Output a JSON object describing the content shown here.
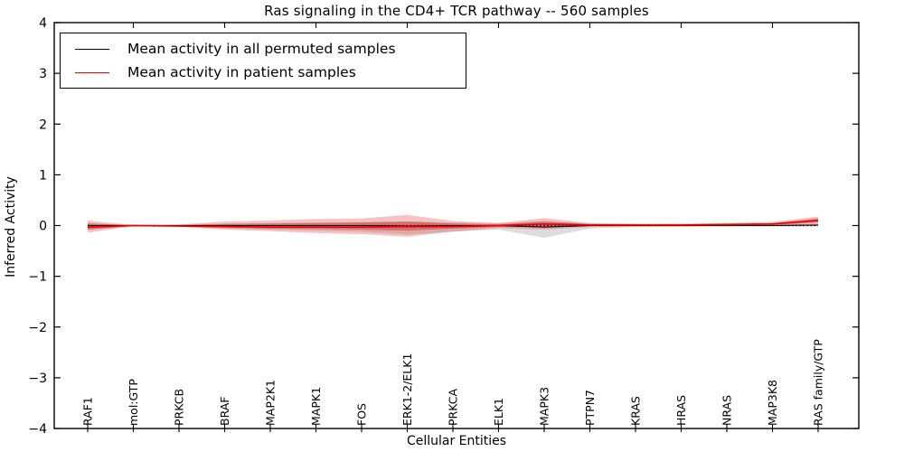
{
  "figure": {
    "title": "Ras signaling in the CD4+ TCR pathway -- 560 samples",
    "xlabel": "Cellular Entities",
    "ylabel": "Inferred Activity"
  },
  "legend": {
    "items": [
      {
        "label": "Mean activity in all permuted samples",
        "color": "#000000"
      },
      {
        "label": "Mean activity in patient samples",
        "color": "#ee0000"
      }
    ]
  },
  "chart_data": {
    "type": "line",
    "title": "Ras signaling in the CD4+ TCR pathway -- 560 samples",
    "xlabel": "Cellular Entities",
    "ylabel": "Inferred Activity",
    "ylim": [
      -4,
      4
    ],
    "yticks": [
      4,
      3,
      2,
      1,
      0,
      -1,
      -2,
      -3,
      -4
    ],
    "grid": false,
    "legend_position": "upper left",
    "categories": [
      "RAF1",
      "mol:GTP",
      "PRKCB",
      "BRAF",
      "MAP2K1",
      "MAPK1",
      "FOS",
      "ERK1-2/ELK1",
      "PRKCA",
      "ELK1",
      "MAPK3",
      "PTPN7",
      "KRAS",
      "HRAS",
      "NRAS",
      "MAP3K8",
      "RAS family/GTP"
    ],
    "top_tick_category_indices": [
      1,
      3,
      5,
      7,
      9,
      11,
      13,
      15
    ],
    "zero_line": {
      "y": 0,
      "style": "dotted",
      "color": "#000000"
    },
    "series": [
      {
        "name": "Mean activity in all permuted samples",
        "color": "#000000",
        "values": [
          0,
          0,
          0,
          0,
          0,
          0,
          0,
          -0.01,
          0,
          0,
          -0.03,
          0,
          0,
          0,
          0,
          0,
          0.01
        ]
      },
      {
        "name": "Mean activity in patient samples",
        "color": "#ee0000",
        "values": [
          -0.03,
          0,
          -0.01,
          -0.02,
          -0.03,
          -0.03,
          -0.03,
          -0.02,
          -0.02,
          0,
          0.03,
          0.01,
          0.01,
          0.01,
          0.02,
          0.03,
          0.1
        ]
      }
    ],
    "bands": [
      {
        "name": "permuted-std-band",
        "fill": "rgba(120,120,120,0.25)",
        "upper": [
          0.05,
          0.01,
          0.02,
          0.04,
          0.05,
          0.06,
          0.07,
          0.08,
          0.06,
          0.05,
          0.09,
          0.04,
          0.03,
          0.02,
          0.02,
          0.02,
          0.04
        ],
        "lower": [
          -0.08,
          -0.01,
          -0.02,
          -0.06,
          -0.08,
          -0.1,
          -0.12,
          -0.18,
          -0.12,
          -0.08,
          -0.24,
          -0.06,
          -0.03,
          -0.02,
          -0.02,
          -0.02,
          -0.02
        ]
      },
      {
        "name": "patient-std-band-outer",
        "fill": "rgba(220,38,38,0.28)",
        "upper": [
          0.1,
          0.01,
          0.02,
          0.08,
          0.1,
          0.13,
          0.14,
          0.21,
          0.09,
          0.05,
          0.15,
          0.05,
          0.04,
          0.04,
          0.05,
          0.07,
          0.18
        ],
        "lower": [
          -0.14,
          -0.01,
          -0.02,
          -0.08,
          -0.11,
          -0.15,
          -0.17,
          -0.22,
          -0.12,
          -0.05,
          -0.08,
          -0.03,
          -0.02,
          -0.02,
          -0.01,
          0.0,
          0.03
        ]
      },
      {
        "name": "patient-std-band-inner",
        "fill": "rgba(200,20,20,0.38)",
        "upper": [
          0.04,
          0.01,
          0.01,
          0.03,
          0.04,
          0.05,
          0.06,
          0.08,
          0.04,
          0.02,
          0.08,
          0.03,
          0.02,
          0.02,
          0.03,
          0.05,
          0.14
        ],
        "lower": [
          -0.08,
          -0.01,
          -0.01,
          -0.04,
          -0.06,
          -0.07,
          -0.08,
          -0.1,
          -0.06,
          -0.03,
          -0.03,
          -0.01,
          -0.01,
          -0.01,
          0.0,
          0.01,
          0.06
        ]
      }
    ]
  }
}
